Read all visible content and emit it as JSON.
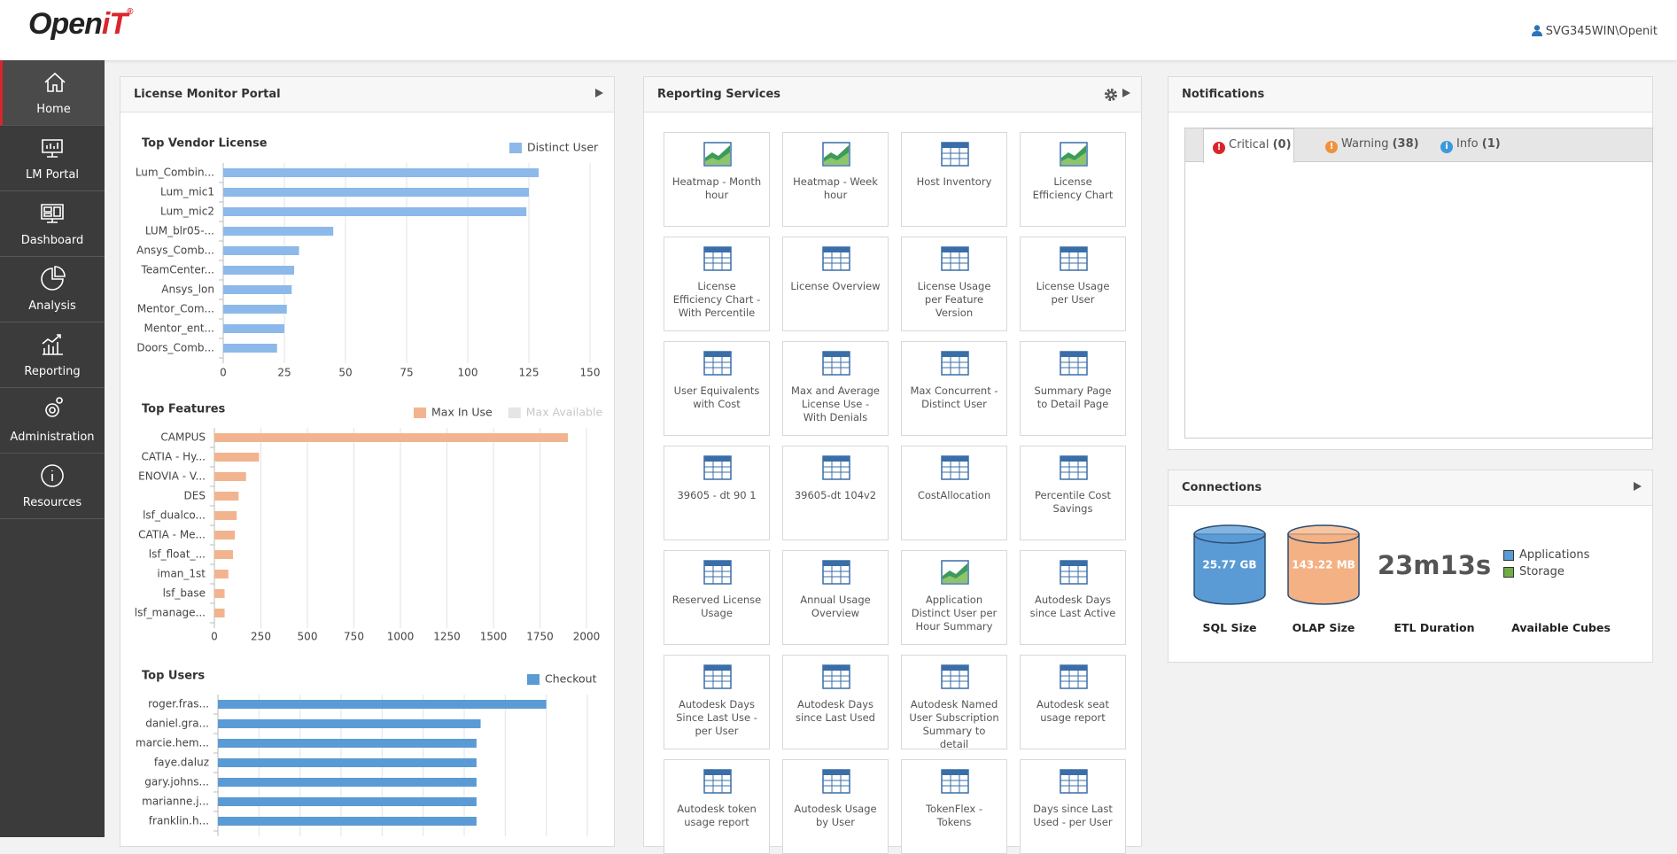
{
  "header": {
    "logo": "Open",
    "logo_accent": "iT",
    "user": "SVG345WIN\\Openit"
  },
  "sidebar": [
    {
      "label": "Home",
      "active": true
    },
    {
      "label": "LM Portal"
    },
    {
      "label": "Dashboard"
    },
    {
      "label": "Analysis"
    },
    {
      "label": "Reporting"
    },
    {
      "label": "Administration"
    },
    {
      "label": "Resources"
    }
  ],
  "license_monitor": {
    "title": "License Monitor Portal",
    "charts": [
      {
        "type": "bar",
        "orientation": "horizontal",
        "title": "Top Vendor License",
        "categories": [
          "Lum_Combin...",
          "Lum_mic1",
          "Lum_mic2",
          "LUM_blr05-...",
          "Ansys_Comb...",
          "TeamCenter...",
          "Ansys_lon",
          "Mentor_Com...",
          "Mentor_ent...",
          "Doors_Comb..."
        ],
        "series": [
          {
            "name": "Distinct User",
            "color": "#8cb9e9",
            "values": [
              129,
              125,
              124,
              45,
              31,
              29,
              28,
              26,
              25,
              22
            ]
          }
        ],
        "xlim": [
          0,
          150
        ],
        "xticks": [
          0,
          25,
          50,
          75,
          100,
          125,
          150
        ],
        "grid": true
      },
      {
        "type": "bar",
        "orientation": "horizontal",
        "title": "Top Features",
        "categories": [
          "CAMPUS",
          "CATIA - Hy...",
          "ENOVIA - V...",
          "DES",
          "lsf_dualco...",
          "CATIA - Me...",
          "lsf_float_...",
          "iman_1st",
          "lsf_base",
          "lsf_manage..."
        ],
        "series": [
          {
            "name": "Max In Use",
            "color": "#f2b48e",
            "values": [
              1900,
              240,
              170,
              130,
              120,
              110,
              100,
              75,
              55,
              55
            ]
          },
          {
            "name": "Max Available",
            "color": "#d4d4d4",
            "hidden": true
          }
        ],
        "xlim": [
          0,
          2000
        ],
        "xticks": [
          0,
          250,
          500,
          750,
          1000,
          1250,
          1500,
          1750,
          2000
        ],
        "grid": true
      },
      {
        "type": "bar",
        "orientation": "horizontal",
        "title": "Top Users",
        "categories": [
          "roger.fras...",
          "daniel.gra...",
          "marcie.hem...",
          "faye.daluz",
          "gary.johns...",
          "marianne.j...",
          "franklin.h..."
        ],
        "series": [
          {
            "name": "Checkout",
            "color": "#5b9bd5",
            "values": [
              8,
              6.4,
              6.3,
              6.3,
              6.3,
              6.3,
              6.3
            ]
          }
        ],
        "xlim": [
          0,
          9
        ],
        "xticks": [
          0,
          1,
          2,
          3,
          4,
          5,
          6,
          7,
          8,
          9
        ],
        "grid": true,
        "tick_labels": false
      }
    ]
  },
  "reporting": {
    "title": "Reporting Services",
    "tiles": [
      {
        "label": "Heatmap - Month hour",
        "icon": "chart"
      },
      {
        "label": "Heatmap - Week hour",
        "icon": "chart"
      },
      {
        "label": "Host Inventory",
        "icon": "table"
      },
      {
        "label": "License Efficiency Chart",
        "icon": "chart"
      },
      {
        "label": "License Efficiency Chart - With Percentile",
        "icon": "table"
      },
      {
        "label": "License Overview",
        "icon": "table"
      },
      {
        "label": "License Usage per Feature Version",
        "icon": "table"
      },
      {
        "label": "License Usage per User",
        "icon": "table"
      },
      {
        "label": "User Equivalents with Cost",
        "icon": "table"
      },
      {
        "label": "Max and Average License Use - With Denials",
        "icon": "table"
      },
      {
        "label": "Max Concurrent - Distinct User",
        "icon": "table"
      },
      {
        "label": "Summary Page to Detail Page",
        "icon": "table"
      },
      {
        "label": "39605 - dt 90 1",
        "icon": "table"
      },
      {
        "label": "39605-dt 104v2",
        "icon": "table"
      },
      {
        "label": "CostAllocation",
        "icon": "table"
      },
      {
        "label": "Percentile Cost Savings",
        "icon": "table"
      },
      {
        "label": "Reserved License Usage",
        "icon": "table"
      },
      {
        "label": "Annual Usage Overview",
        "icon": "table"
      },
      {
        "label": "Application Distinct User per Hour Summary",
        "icon": "chart"
      },
      {
        "label": "Autodesk Days since Last Active",
        "icon": "table"
      },
      {
        "label": "Autodesk Days Since Last Use - per User",
        "icon": "table"
      },
      {
        "label": "Autodesk Days since Last Used",
        "icon": "table"
      },
      {
        "label": "Autodesk Named User Subscription Summary to detail",
        "icon": "table"
      },
      {
        "label": "Autodesk seat usage report",
        "icon": "table"
      },
      {
        "label": "Autodesk token usage report",
        "icon": "table"
      },
      {
        "label": "Autodesk Usage by User",
        "icon": "table"
      },
      {
        "label": "TokenFlex - Tokens",
        "icon": "table"
      },
      {
        "label": "Days since Last Used - per User",
        "icon": "table"
      }
    ]
  },
  "notifications": {
    "title": "Notifications",
    "tabs": [
      {
        "label": "Critical",
        "count": "(0)",
        "color": "#d9262c",
        "active": true
      },
      {
        "label": "Warning",
        "count": "(38)",
        "color": "#f0913c"
      },
      {
        "label": "Info",
        "count": "(1)",
        "color": "#3c9ad9"
      }
    ]
  },
  "connections": {
    "title": "Connections",
    "metrics": [
      {
        "value": "25.77 GB",
        "label": "SQL Size",
        "color": "#5b9bd5"
      },
      {
        "value": "143.22 MB",
        "label": "OLAP Size",
        "color": "#f4b183"
      },
      {
        "value": "23m13s",
        "label": "ETL Duration"
      }
    ],
    "cubes": {
      "label": "Available Cubes",
      "legend": [
        {
          "name": "Applications",
          "color": "#5b9bd5"
        },
        {
          "name": "Storage",
          "color": "#70ad47"
        }
      ]
    }
  }
}
